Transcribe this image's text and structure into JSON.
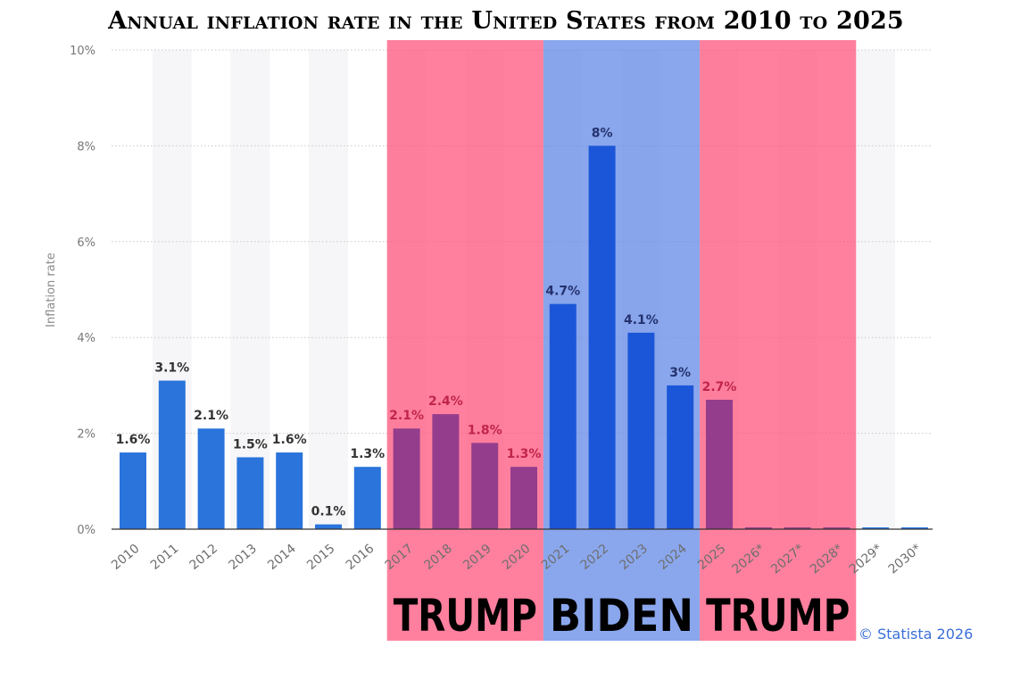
{
  "chart_data": {
    "type": "bar",
    "title": "Annual inflation rate in the United States from 2010 to 2025",
    "ylabel": "Inflation rate",
    "xlabel": "",
    "ylim": [
      0,
      10
    ],
    "y_ticks": [
      "0%",
      "2%",
      "4%",
      "6%",
      "8%",
      "10%"
    ],
    "y_tick_values": [
      0,
      2,
      4,
      6,
      8,
      10
    ],
    "grid": true,
    "categories": [
      "2010",
      "2011",
      "2012",
      "2013",
      "2014",
      "2015",
      "2016",
      "2017",
      "2018",
      "2019",
      "2020",
      "2021",
      "2022",
      "2023",
      "2024",
      "2025",
      "2026*",
      "2027*",
      "2028*",
      "2029*",
      "2030*"
    ],
    "values": [
      1.6,
      3.1,
      2.1,
      1.5,
      1.6,
      0.1,
      1.3,
      2.1,
      2.4,
      1.8,
      1.3,
      4.7,
      8,
      4.1,
      3,
      2.7,
      0,
      0,
      0,
      0,
      0
    ],
    "data_labels": [
      "1.6%",
      "3.1%",
      "2.1%",
      "1.5%",
      "1.6%",
      "0.1%",
      "1.3%",
      "2.1%",
      "2.4%",
      "1.8%",
      "1.3%",
      "4.7%",
      "8%",
      "4.1%",
      "3%",
      "2.7%",
      "",
      "",
      "",
      "",
      ""
    ],
    "bar_color": "#2a74dc",
    "highlight_bands": [
      {
        "label": "TRUMP",
        "from": "2017",
        "to": "2020",
        "color": "#ff4f78"
      },
      {
        "label": "BIDEN",
        "from": "2021",
        "to": "2024",
        "color": "#5d85e6"
      },
      {
        "label": "TRUMP",
        "from": "2025",
        "to": "2028*",
        "color": "#ff4f78"
      }
    ]
  },
  "source": "© Statista 2026"
}
